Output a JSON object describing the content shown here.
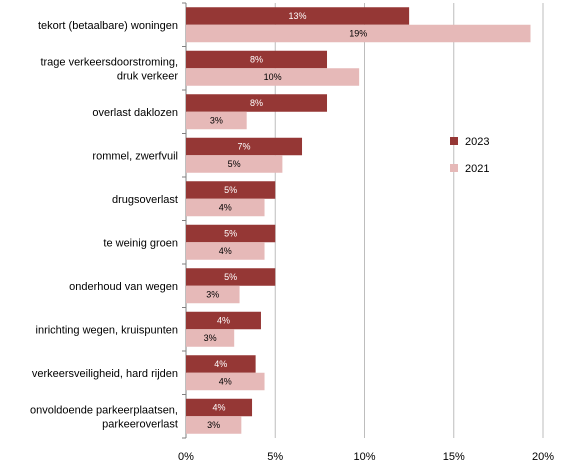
{
  "chart_data": {
    "type": "bar",
    "orientation": "horizontal",
    "categories": [
      "tekort (betaalbare) woningen",
      "trage verkeersdoorstroming,\ndruk verkeer",
      "overlast daklozen",
      "rommel, zwerfvuil",
      "drugsoverlast",
      "te weinig groen",
      "onderhoud van wegen",
      "inrichting wegen, kruispunten",
      "verkeersveiligheid, hard rijden",
      "onvoldoende parkeerplaatsen,\nparkeeroverlast"
    ],
    "series": [
      {
        "name": "2023",
        "color": "#953735",
        "values": [
          12.5,
          7.9,
          7.9,
          6.5,
          5.0,
          5.0,
          5.0,
          4.2,
          3.9,
          3.7
        ],
        "labels": [
          "13%",
          "8%",
          "8%",
          "7%",
          "5%",
          "5%",
          "5%",
          "4%",
          "4%",
          "4%"
        ]
      },
      {
        "name": "2021",
        "color": "#e6b9b8",
        "values": [
          19.3,
          9.7,
          3.4,
          5.4,
          4.4,
          4.4,
          3.0,
          2.7,
          4.4,
          3.1
        ],
        "labels": [
          "19%",
          "10%",
          "3%",
          "5%",
          "4%",
          "4%",
          "3%",
          "3%",
          "4%",
          "3%"
        ]
      }
    ],
    "xlim": [
      0,
      20
    ],
    "xticks": [
      0,
      5,
      10,
      15,
      20
    ],
    "xtick_labels": [
      "0%",
      "5%",
      "10%",
      "15%",
      "20%"
    ],
    "grid": "vertical",
    "legend": [
      "2023",
      "2021"
    ],
    "legend_position": "right"
  }
}
